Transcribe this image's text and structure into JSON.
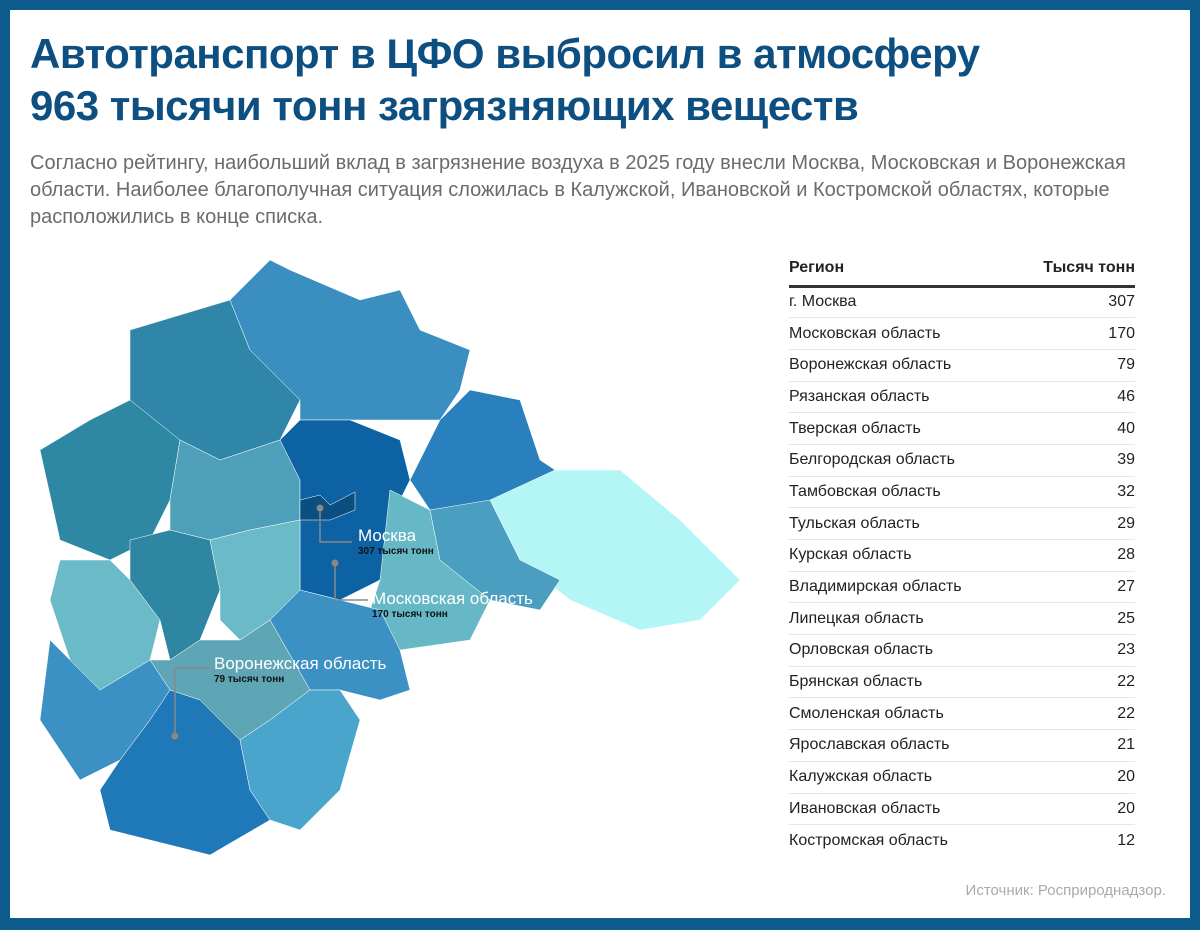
{
  "title": [
    "Автотранспорт в ЦФО выбросил в атмосферу",
    "963 тысячи тонн загрязняющих веществ"
  ],
  "subtitle": "Согласно рейтингу, наибольший вклад в загрязнение воздуха в 2025 году внесли Москва, Московская и Воронежская области. Наиболее благополучная ситуация сложилась в Калужской, Ивановской и Костромской областях, которые расположились в конце списка.",
  "map_labels": [
    {
      "name": "Москва",
      "value": "307 тысяч тонн"
    },
    {
      "name": "Московская область",
      "value": "170 тысяч тонн"
    },
    {
      "name": "Воронежская область",
      "value": "79 тысяч тонн"
    }
  ],
  "table": {
    "headers": [
      "Регион",
      "Тысяч тонн"
    ],
    "rows": [
      [
        "г. Москва",
        "307"
      ],
      [
        "Московская область",
        "170"
      ],
      [
        "Воронежская область",
        "79"
      ],
      [
        "Рязанская область",
        "46"
      ],
      [
        "Тверская область",
        "40"
      ],
      [
        "Белгородская область",
        "39"
      ],
      [
        "Тамбовская область",
        "32"
      ],
      [
        "Тульская область",
        "29"
      ],
      [
        "Курская область",
        "28"
      ],
      [
        "Владимирская область",
        "27"
      ],
      [
        "Липецкая область",
        "25"
      ],
      [
        "Орловская область",
        "23"
      ],
      [
        "Брянская область",
        "22"
      ],
      [
        "Смоленская область",
        "22"
      ],
      [
        "Ярославская область",
        "21"
      ],
      [
        "Калужская область",
        "20"
      ],
      [
        "Ивановская область",
        "20"
      ],
      [
        "Костромская область",
        "12"
      ]
    ]
  },
  "source": "Источник: Росприроднадзор.",
  "colors": {
    "frame": "#0d5a8c",
    "title": "#0d4f80"
  }
}
